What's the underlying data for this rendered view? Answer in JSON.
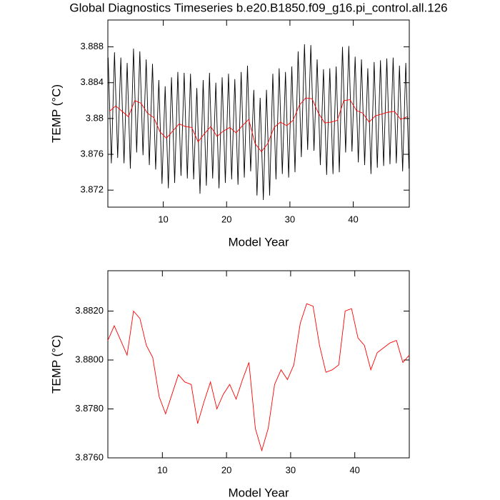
{
  "chart_data": [
    {
      "type": "line",
      "title": "Global Diagnostics Timeseries b.e20.B1850.f09_g16.pi_control.all.126",
      "x_label": "Model Year",
      "y_label": "TEMP (°C)",
      "xlim": [
        1.25,
        48.85
      ],
      "xticks": [
        10,
        20,
        30,
        40
      ],
      "ylim": [
        3.8701,
        3.891
      ],
      "yticks": [
        3.872,
        3.876,
        3.88,
        3.884,
        3.888
      ],
      "series": [
        {
          "color": "#000000",
          "x": [
            1.3,
            1.8,
            2.3,
            2.8,
            3.3,
            3.8,
            4.3,
            4.8,
            5.3,
            5.8,
            6.3,
            6.8,
            7.3,
            7.8,
            8.3,
            8.8,
            9.3,
            9.8,
            10.3,
            10.8,
            11.3,
            11.8,
            12.3,
            12.8,
            13.3,
            13.8,
            14.3,
            14.8,
            15.3,
            15.8,
            16.3,
            16.8,
            17.3,
            17.8,
            18.3,
            18.8,
            19.3,
            19.8,
            20.3,
            20.8,
            21.3,
            21.8,
            22.3,
            22.8,
            23.3,
            23.8,
            24.3,
            24.8,
            25.3,
            25.8,
            26.3,
            26.8,
            27.3,
            27.8,
            28.3,
            28.8,
            29.3,
            29.8,
            30.3,
            30.8,
            31.3,
            31.8,
            32.3,
            32.8,
            33.3,
            33.8,
            34.3,
            34.8,
            35.3,
            35.8,
            36.3,
            36.8,
            37.3,
            37.8,
            38.3,
            38.8,
            39.3,
            39.8,
            40.3,
            40.8,
            41.3,
            41.8,
            42.3,
            42.8,
            43.3,
            43.8,
            44.3,
            44.8,
            45.3,
            45.8,
            46.3,
            46.8,
            47.3,
            47.8,
            48.3,
            48.8
          ],
          "values": [
            3.8868,
            3.875,
            3.8874,
            3.8756,
            3.8868,
            3.875,
            3.8862,
            3.8744,
            3.8878,
            3.8762,
            3.8875,
            3.8759,
            3.8866,
            3.8748,
            3.8861,
            3.8743,
            3.8843,
            3.8727,
            3.8836,
            3.8722,
            3.8846,
            3.8728,
            3.8852,
            3.8736,
            3.8851,
            3.8733,
            3.885,
            3.8732,
            3.8834,
            3.8716,
            3.8843,
            3.8725,
            3.8851,
            3.8733,
            3.884,
            3.8722,
            3.8846,
            3.8728,
            3.885,
            3.8732,
            3.8844,
            3.8726,
            3.8852,
            3.8734,
            3.8859,
            3.8741,
            3.8832,
            3.8714,
            3.8823,
            3.8709,
            3.8832,
            3.8714,
            3.885,
            3.8732,
            3.8856,
            3.8738,
            3.8852,
            3.8734,
            3.8858,
            3.874,
            3.8875,
            3.8757,
            3.8883,
            3.8765,
            3.8882,
            3.8764,
            3.8866,
            3.8748,
            3.8855,
            3.8737,
            3.8856,
            3.8738,
            3.8858,
            3.874,
            3.888,
            3.8762,
            3.8881,
            3.8763,
            3.8869,
            3.8751,
            3.8866,
            3.8748,
            3.8856,
            3.8738,
            3.8863,
            3.8745,
            3.8865,
            3.8747,
            3.8867,
            3.8749,
            3.8868,
            3.875,
            3.8859,
            3.8741,
            3.8862,
            3.8744
          ]
        },
        {
          "color": "#ff0000",
          "x": [
            1.5,
            2.5,
            3.5,
            4.5,
            5.5,
            6.5,
            7.5,
            8.5,
            9.5,
            10.5,
            11.5,
            12.5,
            13.5,
            14.5,
            15.5,
            16.5,
            17.5,
            18.5,
            19.5,
            20.5,
            21.5,
            22.5,
            23.5,
            24.5,
            25.5,
            26.5,
            27.5,
            28.5,
            29.5,
            30.5,
            31.5,
            32.5,
            33.5,
            34.5,
            35.5,
            36.5,
            37.5,
            38.5,
            39.5,
            40.5,
            41.5,
            42.5,
            43.5,
            44.5,
            45.5,
            46.5,
            47.5,
            48.5
          ],
          "values": [
            3.8808,
            3.8814,
            3.8808,
            3.8802,
            3.882,
            3.8817,
            3.8806,
            3.8801,
            3.8785,
            3.8778,
            3.8786,
            3.8794,
            3.8791,
            3.879,
            3.8774,
            3.8783,
            3.8791,
            3.878,
            3.8786,
            3.879,
            3.8784,
            3.8792,
            3.8799,
            3.8772,
            3.8763,
            3.8772,
            3.879,
            3.8796,
            3.8792,
            3.8798,
            3.8815,
            3.8823,
            3.8822,
            3.8806,
            3.8795,
            3.8796,
            3.8798,
            3.882,
            3.8821,
            3.8809,
            3.8806,
            3.8796,
            3.8803,
            3.8805,
            3.8807,
            3.8808,
            3.8799,
            3.8802
          ]
        }
      ]
    },
    {
      "type": "line",
      "x_label": "Model Year",
      "y_label": "TEMP (°C)",
      "xlim": [
        1.5,
        48.5
      ],
      "xticks": [
        10,
        20,
        30,
        40
      ],
      "ylim": [
        3.876,
        3.88365
      ],
      "yticks": [
        {
          "value": 3.876,
          "label": "3.8760"
        },
        {
          "value": 3.878,
          "label": "3.8780"
        },
        {
          "value": 3.88,
          "label": "3.8800"
        },
        {
          "value": 3.882,
          "label": "3.8820"
        }
      ],
      "series": [
        {
          "color": "#ff0000",
          "x": [
            1.5,
            2.5,
            3.5,
            4.5,
            5.5,
            6.5,
            7.5,
            8.5,
            9.5,
            10.5,
            11.5,
            12.5,
            13.5,
            14.5,
            15.5,
            16.5,
            17.5,
            18.5,
            19.5,
            20.5,
            21.5,
            22.5,
            23.5,
            24.5,
            25.5,
            26.5,
            27.5,
            28.5,
            29.5,
            30.5,
            31.5,
            32.5,
            33.5,
            34.5,
            35.5,
            36.5,
            37.5,
            38.5,
            39.5,
            40.5,
            41.5,
            42.5,
            43.5,
            44.5,
            45.5,
            46.5,
            47.5,
            48.5
          ],
          "values": [
            3.8808,
            3.8814,
            3.8808,
            3.8802,
            3.882,
            3.8817,
            3.8806,
            3.8801,
            3.8785,
            3.8778,
            3.8786,
            3.8794,
            3.8791,
            3.879,
            3.8774,
            3.8783,
            3.8791,
            3.878,
            3.8786,
            3.879,
            3.8784,
            3.8792,
            3.8799,
            3.8772,
            3.8763,
            3.8772,
            3.879,
            3.8796,
            3.8792,
            3.8798,
            3.8815,
            3.8823,
            3.8822,
            3.8806,
            3.8795,
            3.8796,
            3.8798,
            3.882,
            3.8821,
            3.8809,
            3.8806,
            3.8796,
            3.8803,
            3.8805,
            3.8807,
            3.8808,
            3.8799,
            3.8802
          ]
        }
      ]
    }
  ]
}
